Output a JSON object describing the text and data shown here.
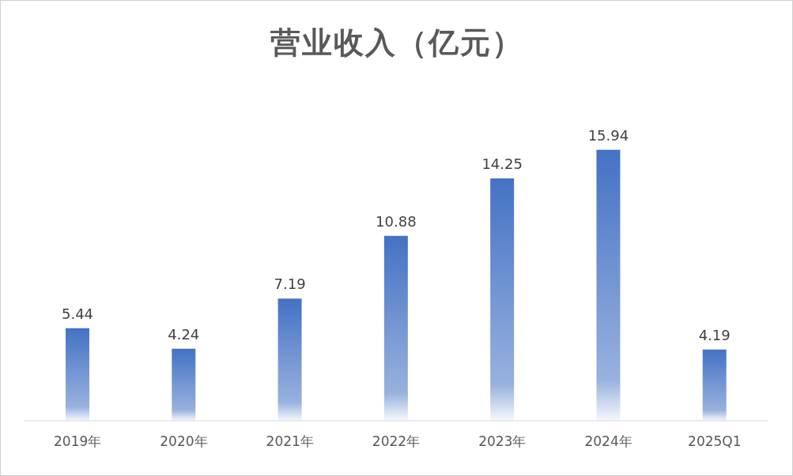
{
  "chart_data": {
    "type": "bar",
    "title": "营业收入（亿元）",
    "categories": [
      "2019年",
      "2020年",
      "2021年",
      "2022年",
      "2023年",
      "2024年",
      "2025Q1"
    ],
    "values": [
      5.44,
      4.24,
      7.19,
      10.88,
      14.25,
      15.94,
      4.19
    ],
    "color": "#4472c4",
    "data_labels": true,
    "grid": false,
    "legend": false
  }
}
